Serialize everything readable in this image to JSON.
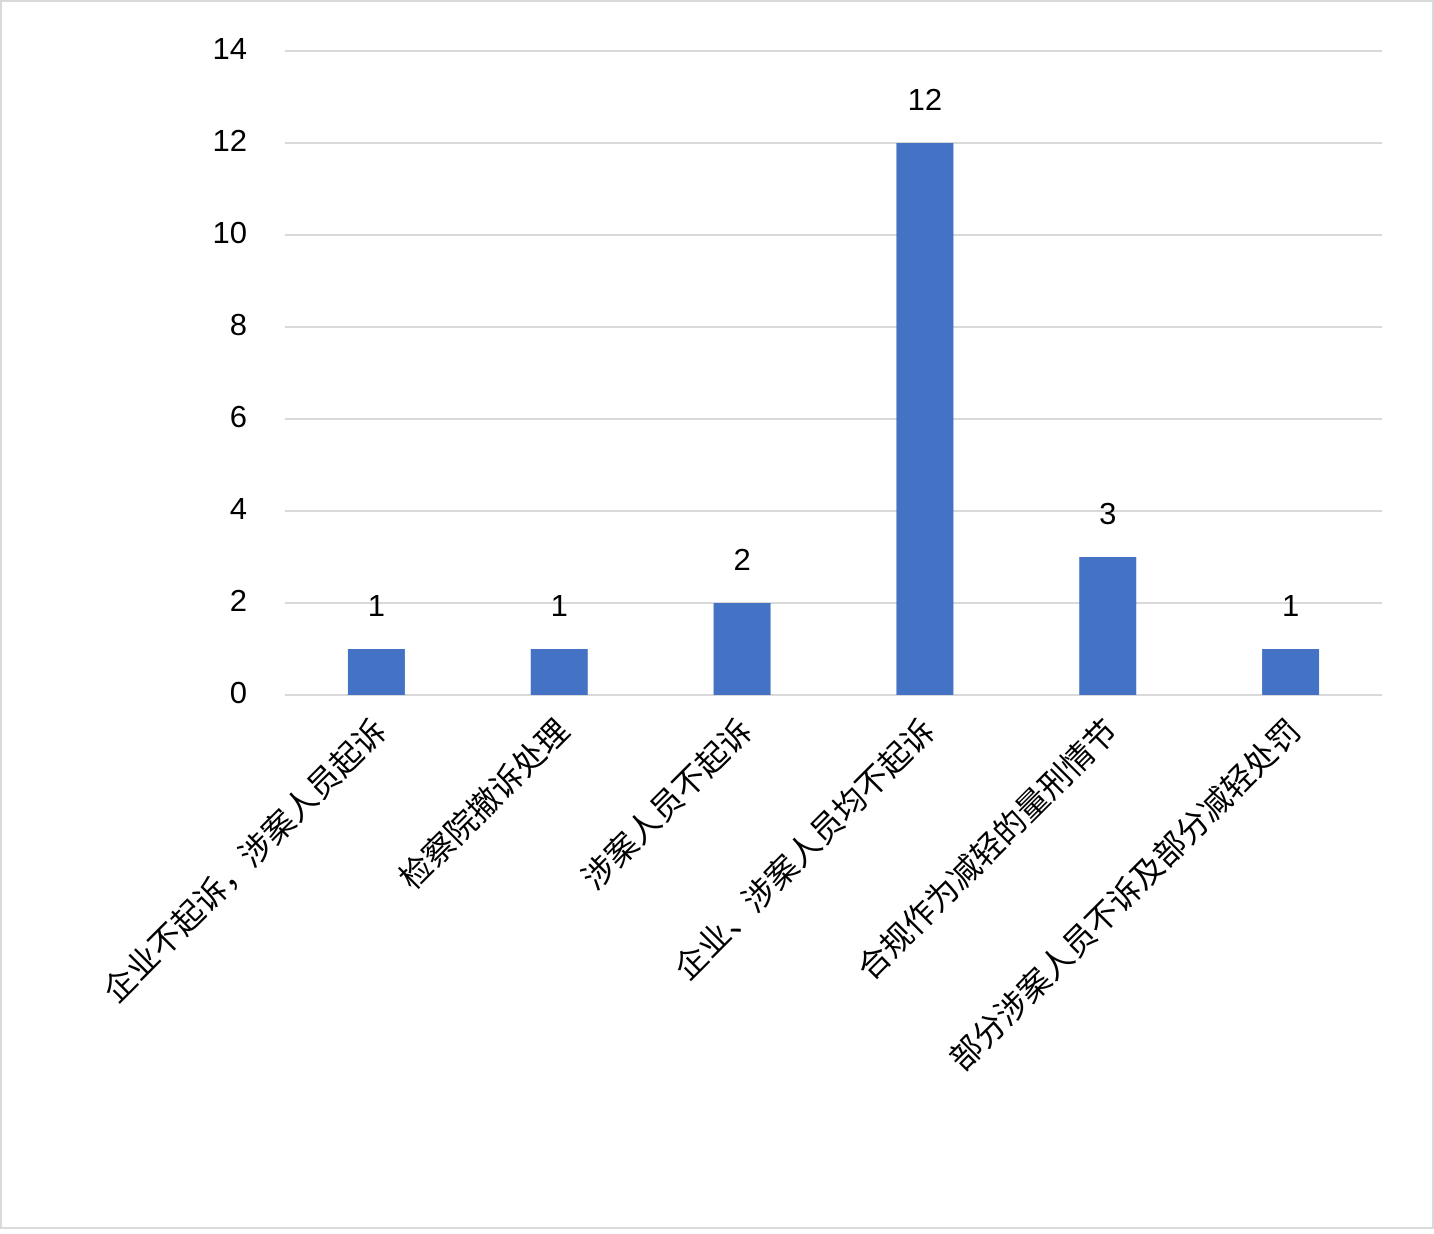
{
  "chart_data": {
    "type": "bar",
    "categories": [
      "企业不起诉，涉案人员起诉",
      "检察院撤诉处理",
      "涉案人员不起诉",
      "企业、涉案人员均不起诉",
      "合规作为减轻的量刑情节",
      "部分涉案人员不诉及部分减轻处罚"
    ],
    "values": [
      1,
      1,
      2,
      12,
      3,
      1
    ],
    "color": "#4472c4",
    "ylim": [
      0,
      14
    ],
    "yticks": [
      0,
      2,
      4,
      6,
      8,
      10,
      12,
      14
    ],
    "grid": true
  }
}
